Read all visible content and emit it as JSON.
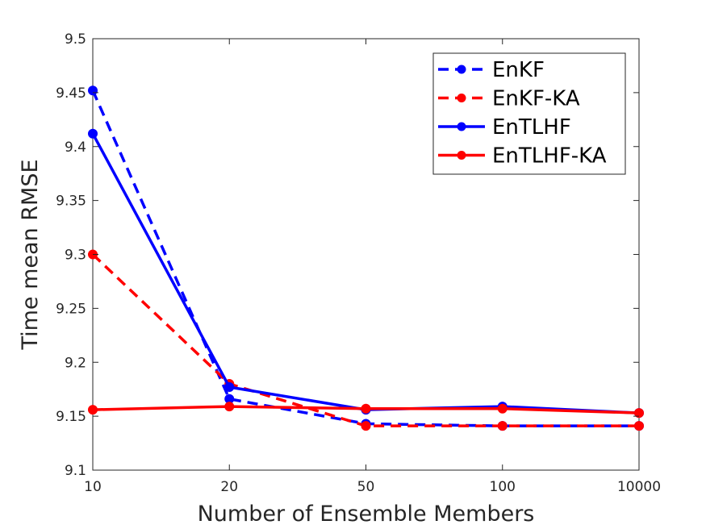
{
  "chart_data": {
    "type": "line",
    "categories": [
      "10",
      "20",
      "50",
      "100",
      "10000"
    ],
    "xlabel": "Number of Ensemble Members",
    "ylabel": "Time mean RMSE",
    "ylim": [
      9.1,
      9.5
    ],
    "yticks": [
      "9.1",
      "9.15",
      "9.2",
      "9.25",
      "9.3",
      "9.35",
      "9.4",
      "9.45",
      "9.5"
    ],
    "grid": false,
    "legend_position": "top-right",
    "series": [
      {
        "name": "EnKF",
        "color": "#0000ff",
        "style": "dashed",
        "values": [
          9.452,
          9.166,
          9.143,
          9.141,
          9.141
        ]
      },
      {
        "name": "EnKF-KA",
        "color": "#ff0000",
        "style": "dashed",
        "values": [
          9.3,
          9.18,
          9.141,
          9.141,
          9.141
        ]
      },
      {
        "name": "EnTLHF",
        "color": "#0000ff",
        "style": "solid",
        "values": [
          9.412,
          9.177,
          9.156,
          9.159,
          9.153
        ]
      },
      {
        "name": "EnTLHF-KA",
        "color": "#ff0000",
        "style": "solid",
        "values": [
          9.156,
          9.159,
          9.157,
          9.157,
          9.153
        ]
      }
    ]
  }
}
